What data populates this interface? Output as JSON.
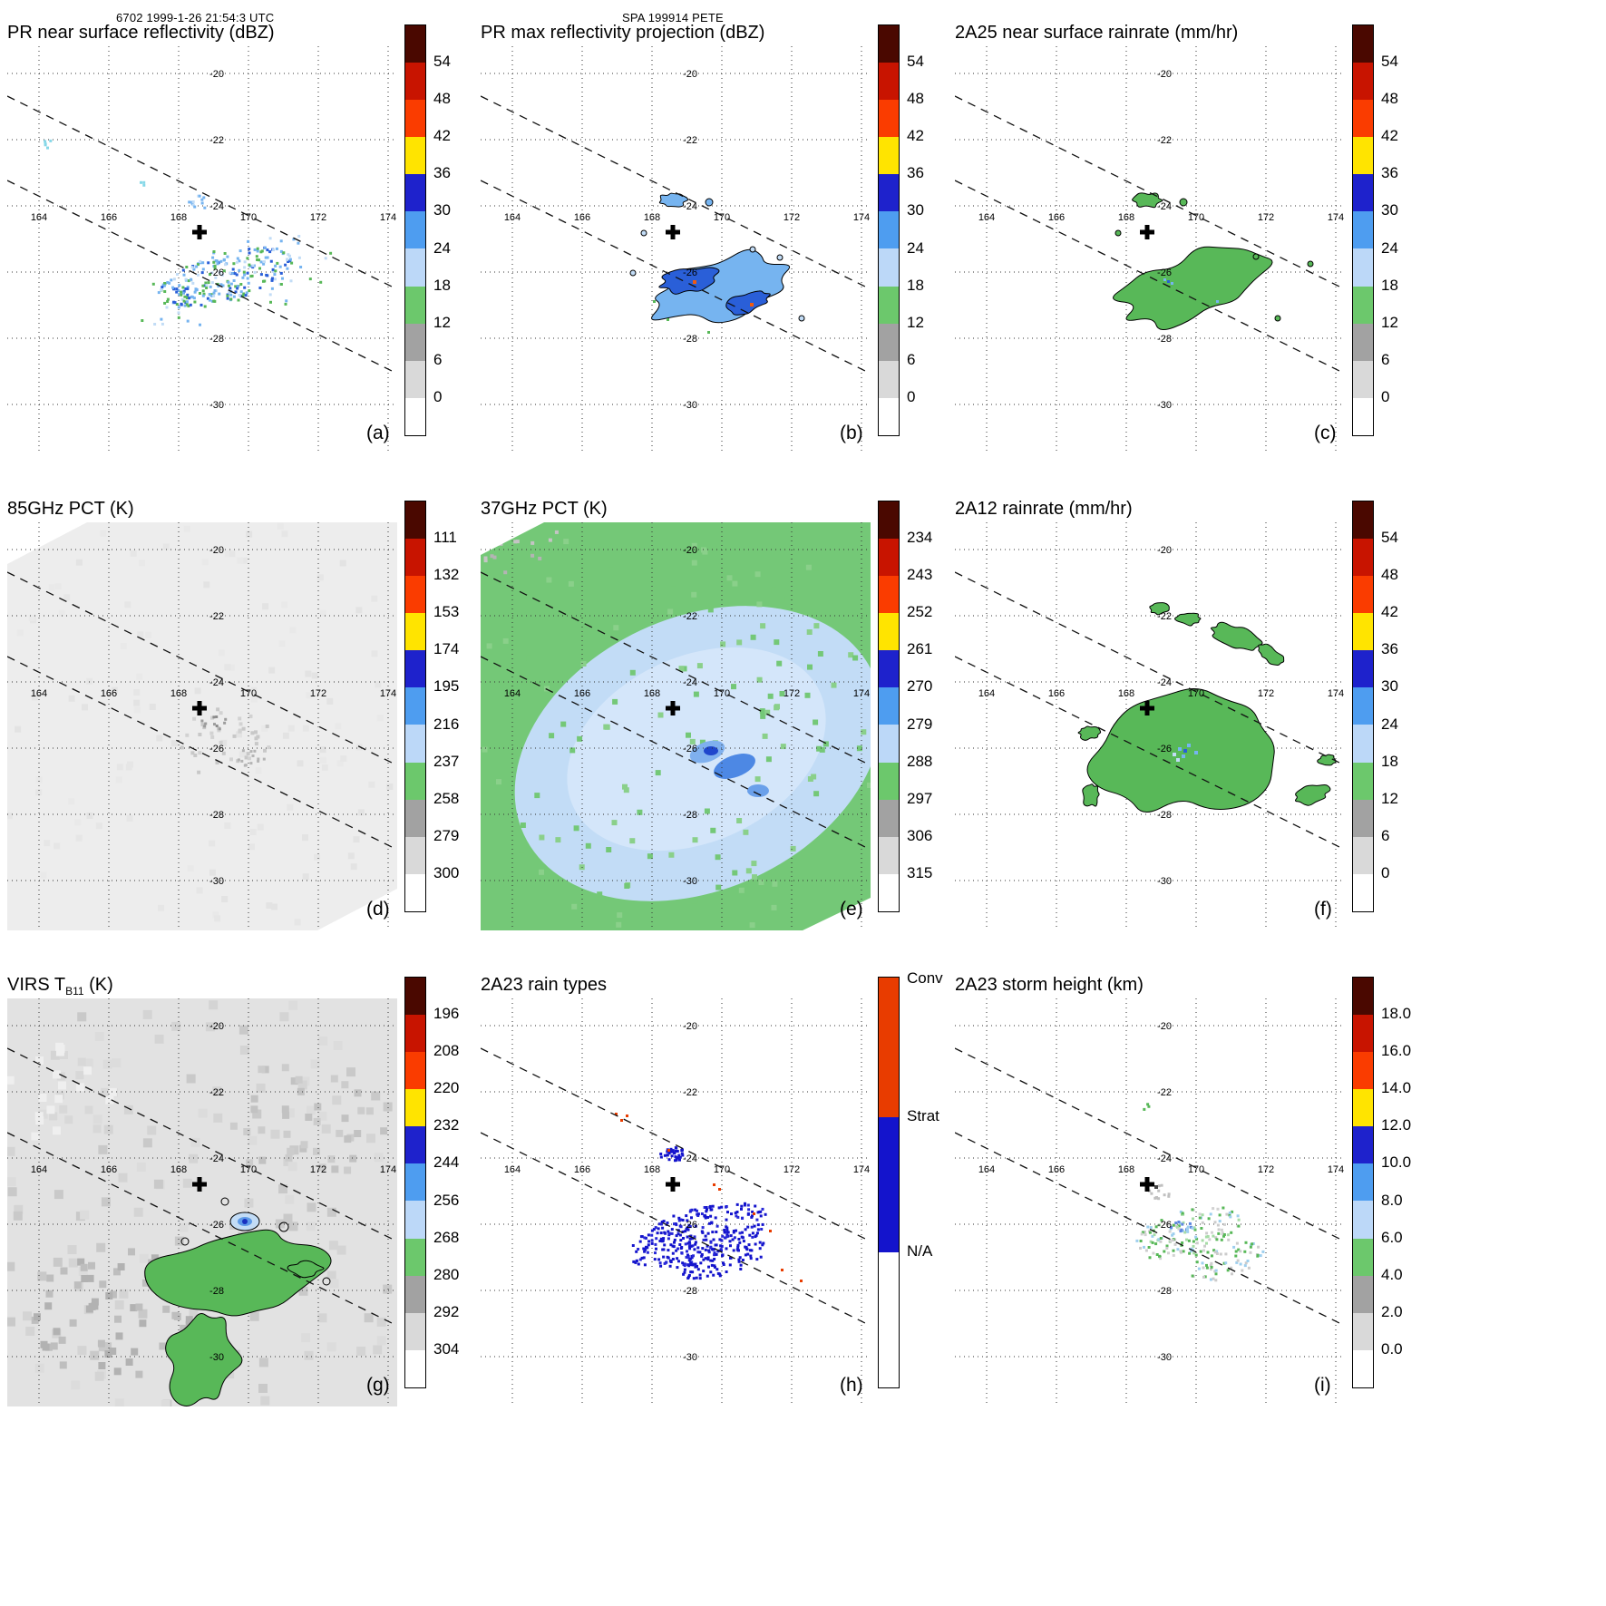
{
  "header": {
    "left": "6702 1999-1-26 21:54:3 UTC",
    "center": "SPA 199914 PETE"
  },
  "chart_data": {
    "type": "heatmap",
    "figure_kind": "3x3 grid of satellite map panels from one TRMM overpass of tropical cyclone PETE (SPA 199914)",
    "lon_ticks": [
      "164",
      "166",
      "168",
      "170",
      "172",
      "174"
    ],
    "lat_ticks": [
      "-20",
      "-22",
      "-24",
      "-26",
      "-28",
      "-30"
    ],
    "lon_range": [
      163.2,
      175.2
    ],
    "lat_range": [
      -31.3,
      -19.2
    ],
    "grid": "dotted graticule every 2 degrees",
    "swath_edges": "two parallel dashed lines running WNW-ESE across every panel (PR swath boundaries)",
    "storm_center": {
      "lon": 169.5,
      "lat": -24.6,
      "marker": "black plus sign"
    },
    "colorbar_colors": [
      "#4a0800",
      "#c81400",
      "#fa3c00",
      "#ffe400",
      "#1e22cc",
      "#4e9df0",
      "#bcd8f8",
      "#6cc86c",
      "#a2a2a2",
      "#d9d9d9",
      "#ffffff"
    ],
    "map_palette": {
      "green": "#58b858",
      "light_blue": "#76b4f0",
      "blue": "#2a5fd8",
      "dark_blue": "#1830c0",
      "pale_blue": "#c2dcf6",
      "orange": "#f05a10",
      "strat_blue": "#1414cc",
      "conv_red": "#e83c00",
      "swath_gray": "#ededed",
      "pct37_green": "#74c877",
      "cloud_gray": "#e2e2e2"
    },
    "panels": [
      {
        "id": "a",
        "letter": "(a)",
        "title": "PR near surface reflectivity (dBZ)",
        "units": "dBZ",
        "map": "pr_ns",
        "description": "Scattered 12-35 dBZ echoes (green / light blue / blue) in a WNW-ESE band near 169-173E, 25-27S; a small cell just SE of the center cross; tiny specks far NW",
        "colorbar": {
          "type": "standard",
          "ticks": [
            "54",
            "48",
            "42",
            "36",
            "30",
            "24",
            "18",
            "12",
            "6",
            "0"
          ]
        }
      },
      {
        "id": "b",
        "letter": "(b)",
        "title": "PR max reflectivity projection (dBZ)",
        "units": "dBZ",
        "map": "pr_max",
        "description": "Same echo band as (a) but denser, with black contour outlines and projected maxima near 30-40 dBZ plus isolated small outlined cells",
        "colorbar": {
          "type": "standard",
          "ticks": [
            "54",
            "48",
            "42",
            "36",
            "30",
            "24",
            "18",
            "12",
            "6",
            "0"
          ]
        }
      },
      {
        "id": "c",
        "letter": "(c)",
        "title": "2A25 near surface rainrate (mm/hr)",
        "units": "mm/hr",
        "map": "rain_2a25",
        "description": "Light rain (mostly under 6 mm/hr, green with black contours) matching the PR echo band; a few embedded heavier blue pixels",
        "colorbar": {
          "type": "standard",
          "ticks": [
            "54",
            "48",
            "42",
            "36",
            "30",
            "24",
            "18",
            "12",
            "6",
            "0"
          ]
        }
      },
      {
        "id": "d",
        "letter": "(d)",
        "title": "85GHz PCT (K)",
        "units": "K",
        "map": "pct85",
        "description": "Wide TMI swath, mostly warm 280-300 K (near-white gray) with weak scattering depressions 250-280 K (darker gray specks) near the storm center",
        "colorbar": {
          "type": "standard",
          "ticks": [
            "111",
            "132",
            "153",
            "174",
            "195",
            "216",
            "237",
            "258",
            "279",
            "300"
          ]
        }
      },
      {
        "id": "e",
        "letter": "(e)",
        "title": "37GHz PCT (K)",
        "units": "K",
        "map": "pct37",
        "description": "Broad 270-285 K region (pale blue) surrounded by about 288 K (green) across the swath; small 260-270 K cores (darker blue) just SE of the center",
        "colorbar": {
          "type": "standard",
          "ticks": [
            "234",
            "243",
            "252",
            "261",
            "270",
            "279",
            "288",
            "297",
            "306",
            "315"
          ]
        }
      },
      {
        "id": "f",
        "letter": "(f)",
        "title": "2A12 rainrate (mm/hr)",
        "units": "mm/hr",
        "map": "rain_2a12",
        "description": "Large light-rain shield (up to about 6 mm/hr, green with black contours) over and SE of the center, with curved outer rainband patches to the N, W and E and a few blue pixels inside",
        "colorbar": {
          "type": "standard",
          "ticks": [
            "54",
            "48",
            "42",
            "36",
            "30",
            "24",
            "18",
            "12",
            "6",
            "0"
          ]
        }
      },
      {
        "id": "g",
        "letter": "(g)",
        "title": "VIRS TB11 (K)",
        "title_parts": [
          {
            "t": "VIRS T"
          },
          {
            "t": "B11",
            "sub": true
          },
          {
            "t": " (K)"
          }
        ],
        "units": "K",
        "map": "virs",
        "description": "Gray cloud shield 270-300 K over most of the scene with cold tops 244-268 K (green, black-contoured) south of the center and a small cold core below 232 K (blue) near the center",
        "colorbar": {
          "type": "standard",
          "ticks": [
            "196",
            "208",
            "220",
            "232",
            "244",
            "256",
            "268",
            "280",
            "292",
            "304"
          ]
        }
      },
      {
        "id": "h",
        "letter": "(h)",
        "title": "2A23 rain types",
        "units": "category",
        "map": "raintype",
        "description": "Rain classification: predominantly stratiform (blue) pixels along the echo band with sparse convective (orange-red) pixels NW of and within the band",
        "colorbar": {
          "type": "categorical",
          "ticks": [
            "Conv",
            "Strat",
            "N/A"
          ],
          "colors": [
            "#e83c00",
            "#1414cc",
            "#ffffff"
          ]
        }
      },
      {
        "id": "i",
        "letter": "(i)",
        "title": "2A23 storm height (km)",
        "units": "km",
        "map": "stormht",
        "description": "Storm heights mostly 2-8 km (gray and green pixels) along the band, with isolated 8-10 km pixels (pale blue / blue) near the center cross",
        "colorbar": {
          "type": "standard",
          "ticks": [
            "18.0",
            "16.0",
            "14.0",
            "12.0",
            "10.0",
            "8.0",
            "6.0",
            "4.0",
            "2.0",
            "0.0"
          ]
        }
      }
    ]
  }
}
